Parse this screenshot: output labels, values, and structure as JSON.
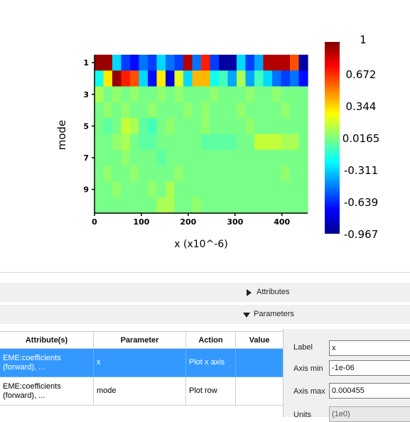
{
  "plot": {
    "ylabel": "mode",
    "xlabel": "x (x10^-6)",
    "y_ticks": [
      "1",
      "3",
      "5",
      "7",
      "9"
    ],
    "x_ticks": [
      "0",
      "100",
      "200",
      "300",
      "400"
    ],
    "colorbar_labels": [
      "1",
      "0.672",
      "0.344",
      "0.0165",
      "-0.311",
      "-0.639",
      "-0.967"
    ]
  },
  "chart_data": {
    "type": "heatmap",
    "xlabel": "x (x10^-6)",
    "ylabel": "mode",
    "xlim": [
      0,
      455
    ],
    "ylim": [
      1,
      10
    ],
    "clim": [
      -0.967,
      1
    ],
    "x_ticks": [
      0,
      100,
      200,
      300,
      400
    ],
    "y_ticks": [
      1,
      3,
      5,
      7,
      9
    ],
    "rows": 10,
    "values": [
      [
        0.95,
        0.95,
        -0.3,
        -0.6,
        -0.7,
        -0.5,
        -0.6,
        -0.3,
        -0.5,
        -0.6,
        0.9,
        -0.5,
        0.7,
        -0.6,
        -0.9,
        -0.9,
        -0.3,
        -0.6,
        -0.4,
        0.9,
        0.9,
        0.9,
        0.6,
        -0.9
      ],
      [
        -0.2,
        0.3,
        0.95,
        0.7,
        0.6,
        -0.3,
        -0.7,
        0.3,
        -0.8,
        0.2,
        -0.3,
        0.4,
        0.4,
        -0.2,
        -0.1,
        -0.4,
        0.1,
        -0.4,
        -0.1,
        -0.3,
        -0.5,
        -0.6,
        -0.5,
        -0.7
      ],
      [
        0.1,
        0.0,
        0.05,
        0.0,
        0.05,
        0.0,
        0.0,
        0.05,
        0.0,
        0.05,
        0.0,
        0.0,
        0.0,
        0.05,
        0.0,
        0.0,
        0.0,
        0.05,
        0.0,
        0.0,
        0.05,
        0.0,
        0.0,
        0.0
      ],
      [
        0.0,
        0.05,
        0.0,
        0.05,
        0.0,
        0.0,
        0.05,
        0.0,
        0.0,
        0.0,
        0.05,
        0.0,
        0.05,
        0.0,
        0.0,
        0.0,
        0.05,
        0.0,
        0.0,
        0.0,
        0.0,
        0.05,
        0.0,
        0.0
      ],
      [
        0.0,
        -0.05,
        0.0,
        0.15,
        0.1,
        -0.05,
        -0.1,
        0.0,
        0.05,
        0.0,
        0.0,
        0.0,
        0.05,
        0.0,
        0.0,
        0.0,
        0.0,
        0.05,
        0.0,
        0.0,
        0.0,
        0.0,
        0.0,
        0.0
      ],
      [
        0.0,
        0.0,
        0.05,
        0.1,
        0.0,
        -0.05,
        -0.05,
        0.0,
        0.0,
        0.0,
        0.0,
        0.0,
        -0.05,
        -0.05,
        -0.05,
        -0.05,
        0.0,
        0.0,
        0.15,
        0.15,
        0.15,
        0.1,
        0.1,
        0.0
      ],
      [
        0.0,
        0.0,
        0.0,
        0.05,
        0.0,
        0.0,
        0.0,
        -0.05,
        0.0,
        0.0,
        0.0,
        0.0,
        0.0,
        0.0,
        0.0,
        0.0,
        0.0,
        0.0,
        0.0,
        0.0,
        0.0,
        0.0,
        0.0,
        0.0
      ],
      [
        0.0,
        0.05,
        0.0,
        0.0,
        0.05,
        0.0,
        0.0,
        0.0,
        0.0,
        0.05,
        0.0,
        0.0,
        0.0,
        0.0,
        0.0,
        0.0,
        0.0,
        0.0,
        0.0,
        0.0,
        0.0,
        0.05,
        0.0,
        0.0
      ],
      [
        0.0,
        0.0,
        0.05,
        0.0,
        0.0,
        0.0,
        0.05,
        0.0,
        0.1,
        0.0,
        0.0,
        0.0,
        0.0,
        0.0,
        0.0,
        0.0,
        0.0,
        0.0,
        0.0,
        0.0,
        0.0,
        0.0,
        0.0,
        0.0
      ],
      [
        0.0,
        0.0,
        0.0,
        0.0,
        0.0,
        0.0,
        0.0,
        0.1,
        0.1,
        0.0,
        0.0,
        0.05,
        0.0,
        0.0,
        0.0,
        0.0,
        0.0,
        0.0,
        0.0,
        0.0,
        0.0,
        0.0,
        0.0,
        0.0
      ]
    ]
  },
  "sections": {
    "attributes_label": "Attributes",
    "parameters_label": "Parameters"
  },
  "table": {
    "headers": [
      "Attribute(s)",
      "Parameter",
      "Action",
      "Value"
    ],
    "rows": [
      {
        "attribute": "EME:coefficients (forward), ...",
        "parameter": "x",
        "action": "Plot x axis",
        "value": ""
      },
      {
        "attribute": "EME:coefficients (forward), ...",
        "parameter": "mode",
        "action": "Plot row",
        "value": ""
      }
    ]
  },
  "side_panel": {
    "label_caption": "Label",
    "label_value": "x",
    "axis_min_caption": "Axis min",
    "axis_min_value": "-1e-06",
    "axis_max_caption": "Axis max",
    "axis_max_value": "0.000455",
    "units_caption": "Units",
    "units_value": "(1e0)"
  }
}
